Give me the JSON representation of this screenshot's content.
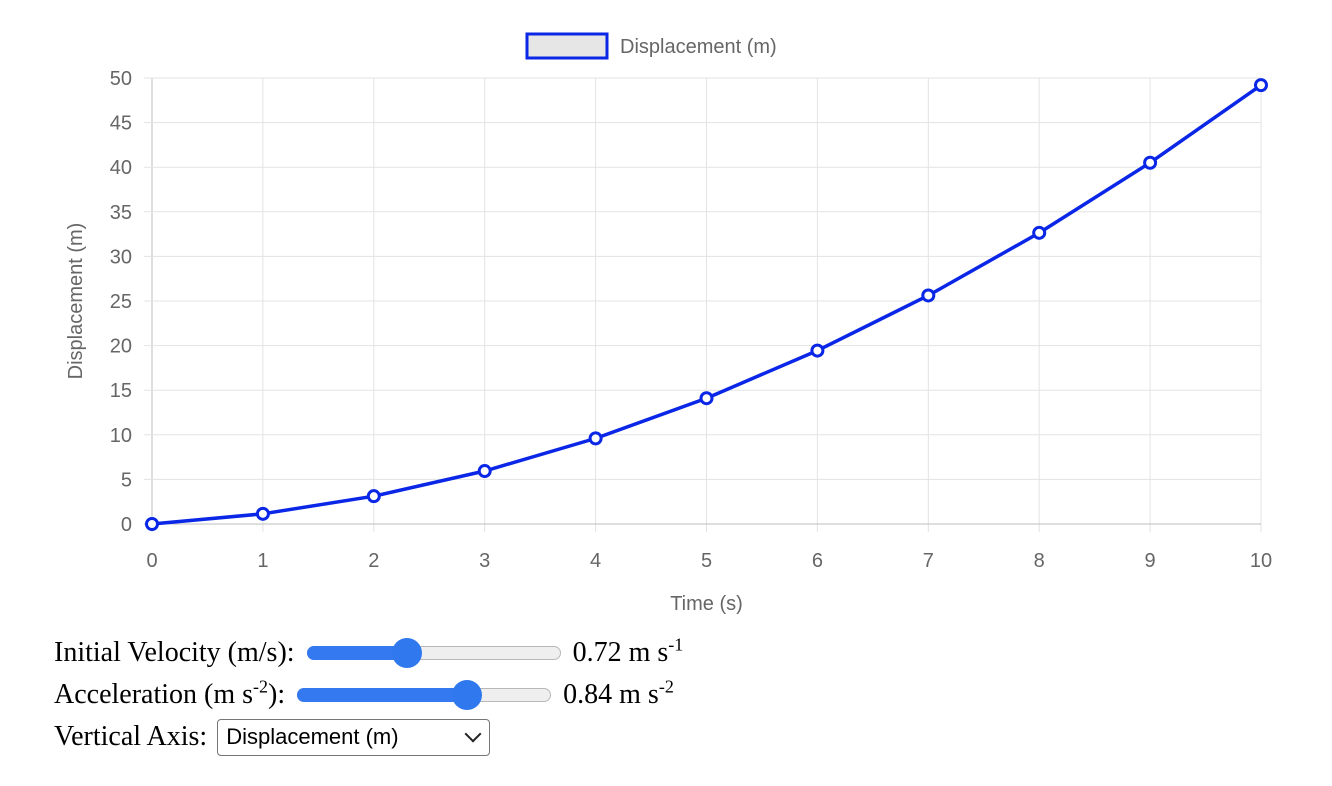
{
  "chart_data": {
    "type": "line",
    "legend": "Displacement (m)",
    "xlabel": "Time (s)",
    "ylabel": "Displacement (m)",
    "x": [
      0,
      1,
      2,
      3,
      4,
      5,
      6,
      7,
      8,
      9,
      10
    ],
    "series": [
      {
        "name": "Displacement (m)",
        "values": [
          0,
          1.14,
          3.12,
          5.94,
          9.6,
          14.1,
          19.44,
          25.62,
          32.64,
          40.5,
          49.2
        ]
      }
    ],
    "xlim": [
      0,
      10
    ],
    "ylim": [
      0,
      50
    ],
    "xticks": [
      "0",
      "1",
      "2",
      "3",
      "4",
      "5",
      "6",
      "7",
      "8",
      "9",
      "10"
    ],
    "yticks": [
      "0",
      "5",
      "10",
      "15",
      "20",
      "25",
      "30",
      "35",
      "40",
      "45",
      "50"
    ],
    "grid": true,
    "legend_position": "top",
    "line_color": "#0a26e6",
    "legend_fill": "#e6e6e6"
  },
  "controls": {
    "velocity": {
      "label": "Initial Velocity (m/s):",
      "value_text": "0.72 m s",
      "value_sup": "-1",
      "fraction": 0.38
    },
    "acceleration": {
      "label_pre": "Acceleration (m s",
      "label_sup": "-2",
      "label_post": "):",
      "value_text": "0.84 m s",
      "value_sup": "-2",
      "fraction": 0.69
    },
    "axis": {
      "label": "Vertical Axis:",
      "selected": "Displacement (m)"
    }
  }
}
